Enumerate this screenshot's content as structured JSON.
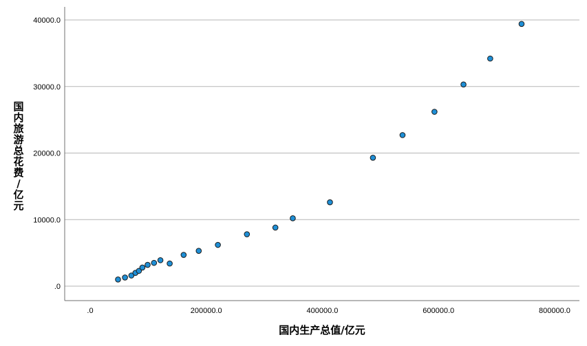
{
  "chart_data": {
    "type": "scatter",
    "title": "",
    "xlabel": "国内生产总值/亿元",
    "ylabel": "国内旅游总花费/亿元",
    "ylabel_chars": [
      "国",
      "内",
      "旅",
      "游",
      "总",
      "花",
      "费",
      "/",
      "亿",
      "元"
    ],
    "xlim": [
      -45000,
      830000
    ],
    "ylim": [
      -2200,
      42000
    ],
    "x_ticks": [
      0,
      200000,
      400000,
      600000,
      800000
    ],
    "x_tick_labels": [
      ".0",
      "200000.0",
      "400000.0",
      "600000.0",
      "800000.0"
    ],
    "y_ticks": [
      0,
      10000,
      20000,
      30000,
      40000
    ],
    "y_tick_labels": [
      ".0",
      "10000.0",
      "20000.0",
      "30000.0",
      "40000.0"
    ],
    "grid": "horizontal",
    "colors": {
      "point_fill": "#1f8fd6",
      "point_stroke": "#1a1a1a",
      "grid": "#b5b5b5",
      "axis": "#6f6f6f"
    },
    "points": [
      {
        "x": 48000,
        "y": 1000
      },
      {
        "x": 60000,
        "y": 1300
      },
      {
        "x": 71000,
        "y": 1600
      },
      {
        "x": 78000,
        "y": 2000
      },
      {
        "x": 84000,
        "y": 2300
      },
      {
        "x": 90000,
        "y": 2800
      },
      {
        "x": 99000,
        "y": 3200
      },
      {
        "x": 110000,
        "y": 3500
      },
      {
        "x": 121000,
        "y": 3900
      },
      {
        "x": 137000,
        "y": 3400
      },
      {
        "x": 161000,
        "y": 4700
      },
      {
        "x": 187000,
        "y": 5300
      },
      {
        "x": 220000,
        "y": 6200
      },
      {
        "x": 270000,
        "y": 7800
      },
      {
        "x": 319000,
        "y": 8800
      },
      {
        "x": 349000,
        "y": 10200
      },
      {
        "x": 413000,
        "y": 12600
      },
      {
        "x": 487000,
        "y": 19300
      },
      {
        "x": 538000,
        "y": 22700
      },
      {
        "x": 593000,
        "y": 26200
      },
      {
        "x": 643000,
        "y": 30300
      },
      {
        "x": 689000,
        "y": 34200
      },
      {
        "x": 743000,
        "y": 39400
      }
    ]
  }
}
